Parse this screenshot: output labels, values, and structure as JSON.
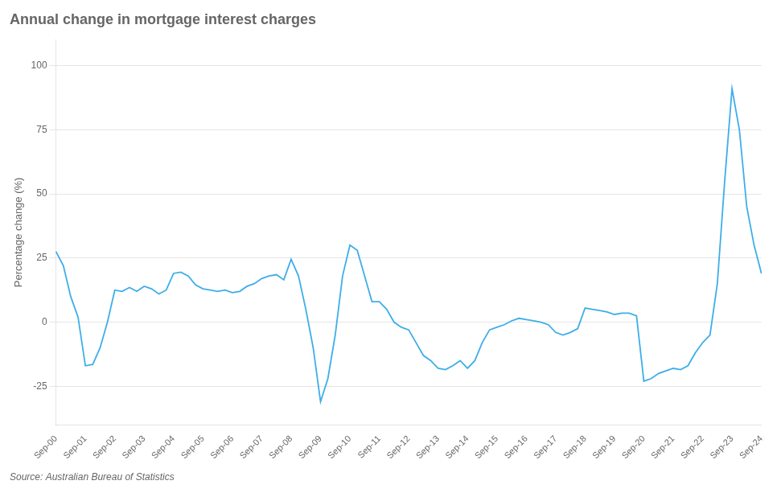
{
  "chart_data": {
    "type": "line",
    "title": "Annual change in mortgage interest charges",
    "ylabel": "Percentage change (%)",
    "annotations": [
      "Source: Australian Bureau of Statistics"
    ],
    "color": "#3daee8",
    "grid": true,
    "ylim": [
      -40,
      110
    ],
    "yticks": [
      -25,
      0,
      25,
      50,
      75,
      100
    ],
    "categories": [
      "Sep-00",
      null,
      null,
      null,
      "Sep-01",
      null,
      null,
      null,
      "Sep-02",
      null,
      null,
      null,
      "Sep-03",
      null,
      null,
      null,
      "Sep-04",
      null,
      null,
      null,
      "Sep-05",
      null,
      null,
      null,
      "Sep-06",
      null,
      null,
      null,
      "Sep-07",
      null,
      null,
      null,
      "Sep-08",
      null,
      null,
      null,
      "Sep-09",
      null,
      null,
      null,
      "Sep-10",
      null,
      null,
      null,
      "Sep-11",
      null,
      null,
      null,
      "Sep-12",
      null,
      null,
      null,
      "Sep-13",
      null,
      null,
      null,
      "Sep-14",
      null,
      null,
      null,
      "Sep-15",
      null,
      null,
      null,
      "Sep-16",
      null,
      null,
      null,
      "Sep-17",
      null,
      null,
      null,
      "Sep-18",
      null,
      null,
      null,
      "Sep-19",
      null,
      null,
      null,
      "Sep-20",
      null,
      null,
      null,
      "Sep-21",
      null,
      null,
      null,
      "Sep-22",
      null,
      null,
      null,
      "Sep-23",
      null,
      null,
      null,
      "Sep-24"
    ],
    "values": [
      27.5,
      22.0,
      10.0,
      2.0,
      -17.0,
      -16.5,
      -10.0,
      0.0,
      12.5,
      12.0,
      13.5,
      12.0,
      14.0,
      13.0,
      11.0,
      12.5,
      19.0,
      19.5,
      18.0,
      14.5,
      13.0,
      12.5,
      12.0,
      12.5,
      11.5,
      12.0,
      14.0,
      15.0,
      17.0,
      18.0,
      18.5,
      16.5,
      24.5,
      18.0,
      5.0,
      -10.0,
      -31.0,
      -22.0,
      -5.0,
      18.0,
      30.0,
      28.0,
      18.0,
      8.0,
      8.0,
      5.0,
      0.0,
      -2.0,
      -3.0,
      -8.0,
      -13.0,
      -15.0,
      -18.0,
      -18.5,
      -17.0,
      -15.0,
      -18.0,
      -15.0,
      -8.0,
      -3.0,
      -2.0,
      -1.0,
      0.5,
      1.5,
      1.0,
      0.5,
      0.0,
      -1.0,
      -4.0,
      -5.0,
      -4.0,
      -2.5,
      5.5,
      5.0,
      4.5,
      4.0,
      3.0,
      3.5,
      3.5,
      2.5,
      -23.0,
      -22.0,
      -20.0,
      -19.0,
      -18.0,
      -18.5,
      -17.0,
      -12.0,
      -8.0,
      -5.0,
      15.0,
      55.0,
      91.0,
      75.0,
      45.0,
      30.0,
      19.0
    ]
  }
}
